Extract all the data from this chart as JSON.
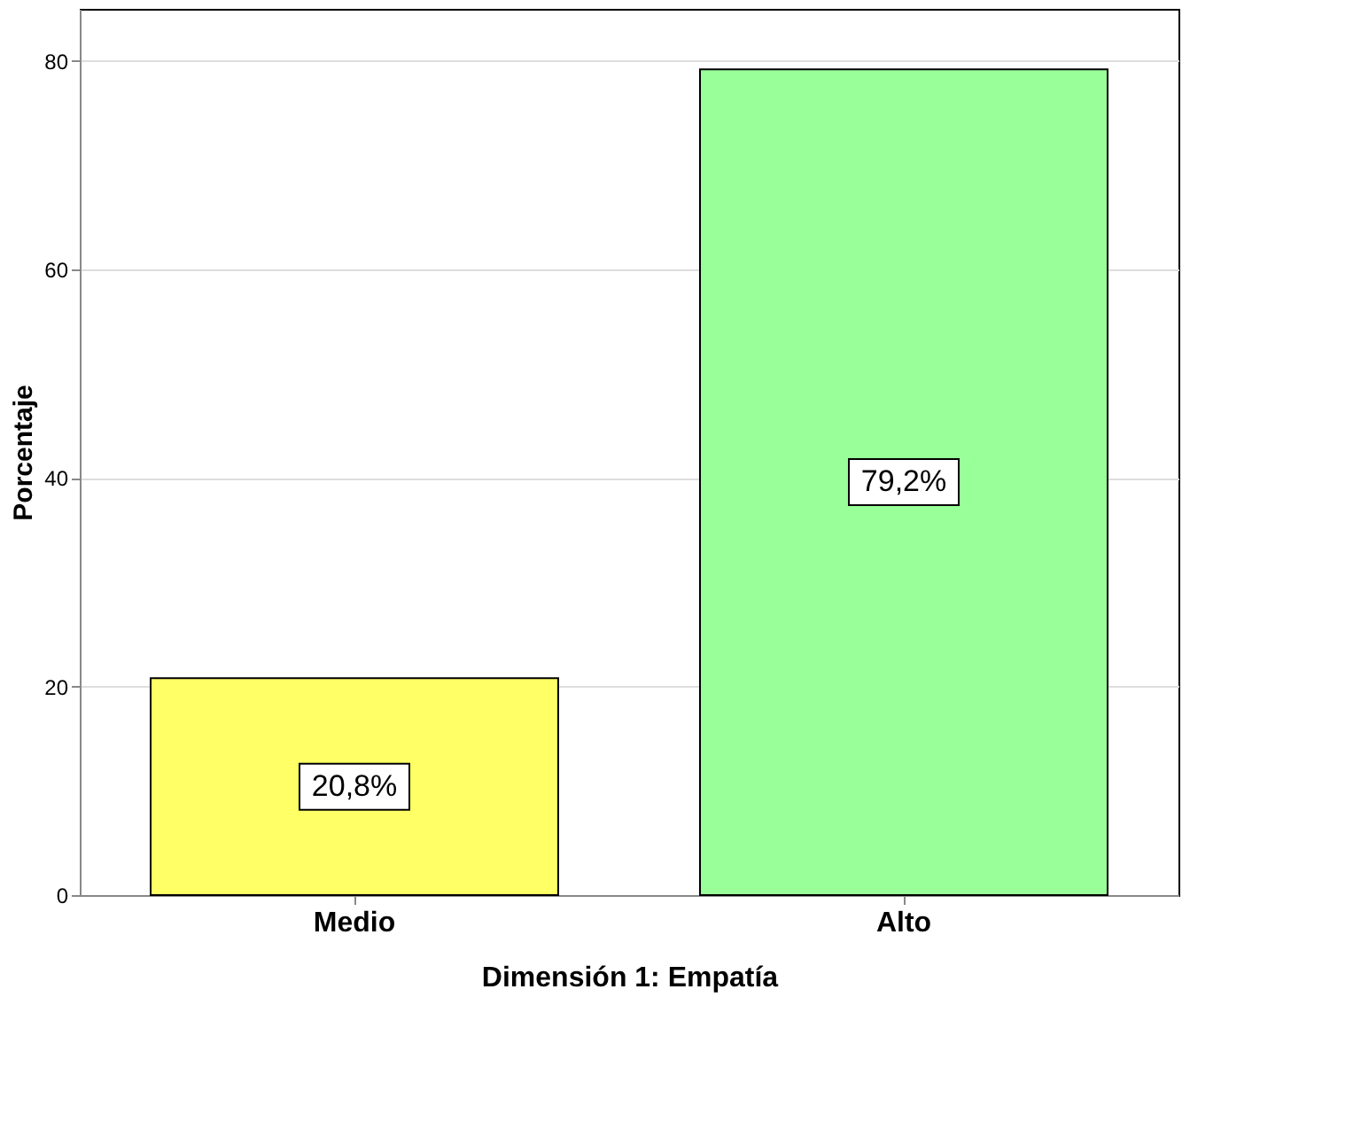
{
  "chart_data": {
    "type": "bar",
    "xlabel": "Dimensión 1: Empatía",
    "ylabel": "Porcentaje",
    "categories": [
      "Medio",
      "Alto"
    ],
    "values": [
      20.8,
      79.2
    ],
    "colors": [
      "#ffff66",
      "#99ff99"
    ],
    "value_labels": [
      "20,8%",
      "79,2%"
    ],
    "ylim": [
      0,
      85
    ],
    "yticks": [
      0,
      20,
      40,
      60,
      80
    ],
    "grid": "y"
  }
}
